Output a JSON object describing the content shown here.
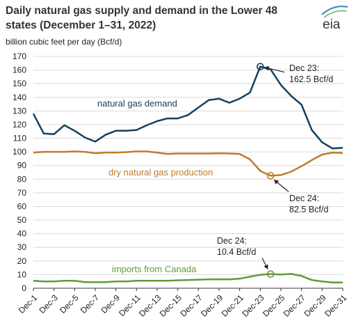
{
  "header": {
    "title_line1": "Daily natural gas supply and demand in the Lower 48",
    "title_line2": "states (December 1–31, 2022)",
    "logo_text": "eia"
  },
  "chart_data": {
    "type": "line",
    "title": "Daily natural gas supply and demand in the Lower 48 states (December 1–31, 2022)",
    "unit_label": "billion cubic feet per day (Bcf/d)",
    "xlabel": "",
    "ylabel": "",
    "ylim": [
      0,
      170
    ],
    "yticks": [
      0,
      10,
      20,
      30,
      40,
      50,
      60,
      70,
      80,
      90,
      100,
      110,
      120,
      130,
      140,
      150,
      160,
      170
    ],
    "grid": "horizontal",
    "legend": "inline",
    "x": [
      1,
      2,
      3,
      4,
      5,
      6,
      7,
      8,
      9,
      10,
      11,
      12,
      13,
      14,
      15,
      16,
      17,
      18,
      19,
      20,
      21,
      22,
      23,
      24,
      25,
      26,
      27,
      28,
      29,
      30,
      31
    ],
    "x_tick_labels": [
      "Dec-1",
      "Dec-3",
      "Dec-5",
      "Dec-7",
      "Dec-9",
      "Dec-11",
      "Dec-13",
      "Dec-15",
      "Dec-17",
      "Dec-19",
      "Dec-21",
      "Dec-23",
      "Dec-25",
      "Dec-27",
      "Dec-29",
      "Dec-31"
    ],
    "x_tick_days": [
      1,
      3,
      5,
      7,
      9,
      11,
      13,
      15,
      17,
      19,
      21,
      23,
      25,
      27,
      29,
      31
    ],
    "series": [
      {
        "name": "natural gas demand",
        "color": "#12415e",
        "values": [
          128,
          113.5,
          113,
          119.5,
          115.5,
          110.5,
          107.5,
          112.5,
          115.5,
          115.5,
          116,
          119.5,
          122.5,
          124.5,
          124.5,
          127,
          132.5,
          138,
          139,
          136,
          139,
          143.5,
          162.5,
          160.5,
          149,
          141,
          134.5,
          116,
          107,
          102.5,
          103
        ]
      },
      {
        "name": "dry natural gas production",
        "color": "#c07a2c",
        "values": [
          99.5,
          100,
          100,
          100,
          100.3,
          100,
          99,
          99.5,
          99.5,
          99.8,
          100.3,
          100.3,
          99.5,
          98.5,
          98.8,
          98.8,
          98.8,
          98.8,
          99,
          98.8,
          98.5,
          94.5,
          86,
          82.5,
          83,
          85.5,
          89.5,
          94,
          98,
          99.5,
          99.2
        ]
      },
      {
        "name": "imports from Canada",
        "color": "#5f9b3a",
        "values": [
          5.5,
          5,
          5,
          5.5,
          5.5,
          4.5,
          4.5,
          4.5,
          5,
          5,
          5.5,
          5.5,
          5.5,
          5.5,
          5.8,
          6,
          6.3,
          6.5,
          6.5,
          6.5,
          7,
          8.5,
          9.8,
          10.4,
          10,
          10.5,
          9,
          6,
          5,
          4.2,
          4.2
        ]
      }
    ],
    "annotations": [
      {
        "series": 0,
        "day": 23,
        "value": 162.5,
        "line1": "Dec 23:",
        "line2": "162.5 Bcf/d"
      },
      {
        "series": 1,
        "day": 24,
        "value": 82.5,
        "line1": "Dec 24:",
        "line2": "82.5 Bcf/d"
      },
      {
        "series": 2,
        "day": 24,
        "value": 10.4,
        "line1": "Dec 24:",
        "line2": "10.4 Bcf/d"
      }
    ]
  }
}
